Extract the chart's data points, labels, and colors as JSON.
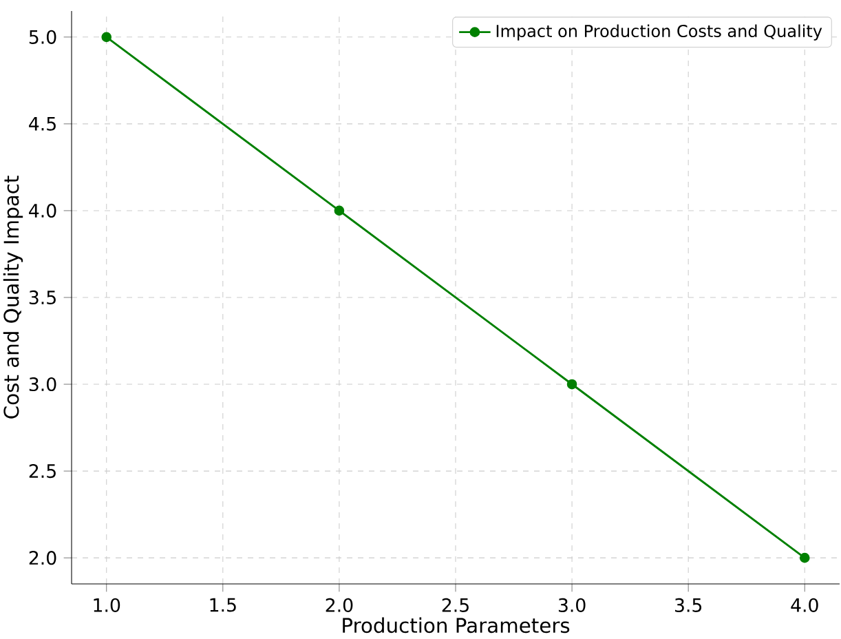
{
  "chart_data": {
    "type": "line",
    "xlabel": "Production Parameters",
    "ylabel": "Cost and Quality Impact",
    "x": [
      1,
      2,
      3,
      4
    ],
    "series": [
      {
        "name": "Impact on Production Costs and Quality",
        "color": "#008000",
        "values": [
          5,
          4,
          3,
          2
        ]
      }
    ],
    "xlim": [
      0.85,
      4.15
    ],
    "ylim": [
      1.85,
      5.15
    ],
    "xticks": [
      {
        "value": 1,
        "label": "1.0"
      },
      {
        "value": 1.5,
        "label": "1.5"
      },
      {
        "value": 2,
        "label": "2.0"
      },
      {
        "value": 2.5,
        "label": "2.5"
      },
      {
        "value": 3,
        "label": "3.0"
      },
      {
        "value": 3.5,
        "label": "3.5"
      },
      {
        "value": 4,
        "label": "4.0"
      }
    ],
    "yticks": [
      {
        "value": 2,
        "label": "2.0"
      },
      {
        "value": 2.5,
        "label": "2.5"
      },
      {
        "value": 3,
        "label": "3.0"
      },
      {
        "value": 3.5,
        "label": "3.5"
      },
      {
        "value": 4,
        "label": "4.0"
      },
      {
        "value": 4.5,
        "label": "4.5"
      },
      {
        "value": 5,
        "label": "5.0"
      }
    ],
    "grid": true,
    "legend": "top right",
    "marker": "circle",
    "line_style": "solid"
  }
}
